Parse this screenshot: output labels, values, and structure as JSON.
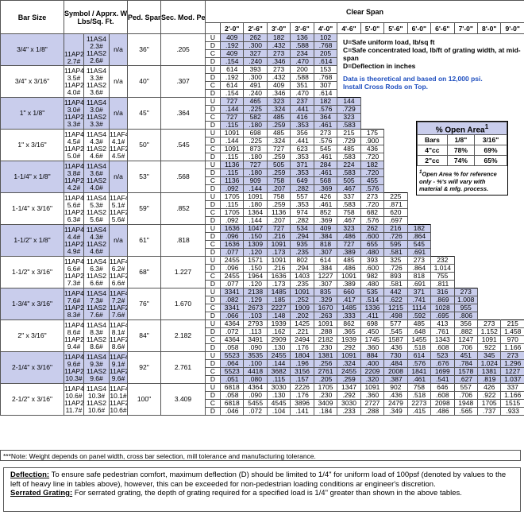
{
  "header": {
    "bar_size": "Bar Size",
    "symbol": "Symbol / Apprx. Wgt***",
    "symbol_unit": "Lbs/Sq. Ft.",
    "ped_span": "Ped. Span",
    "sec_mod": "Sec. Mod. Per Ft. Of Width",
    "clear_span": "Clear Span",
    "spans": [
      "2'-0\"",
      "2'-6\"",
      "3'-0\"",
      "3'-6\"",
      "4'-0\"",
      "4'-6\"",
      "5'-0\"",
      "5'-6\"",
      "6'-0\"",
      "6'-6\"",
      "7'-0\"",
      "8'-0\"",
      "9'-0\""
    ]
  },
  "load_codes": [
    "U",
    "D",
    "C",
    "D"
  ],
  "rows": [
    {
      "bar_size": "3/4\" x 1/8\"",
      "symbols": [
        [
          "11AP2",
          "2.7#"
        ],
        [
          "11AS4",
          "2.3#",
          "11AS2",
          "2.6#"
        ],
        [
          "n/a"
        ]
      ],
      "ped_span": "36\"",
      "sec_mod": ".205",
      "values": [
        [
          "409",
          "262",
          "182",
          "136",
          "102"
        ],
        [
          ".192",
          ".300",
          ".432",
          ".588",
          ".768"
        ],
        [
          "409",
          "327",
          "273",
          "234",
          "205"
        ],
        [
          ".154",
          ".240",
          ".346",
          ".470",
          ".614"
        ]
      ]
    },
    {
      "bar_size": "3/4\" x 3/16\"",
      "symbols": [
        [
          "11AP4",
          "3.5#",
          "11AP2",
          "4.0#"
        ],
        [
          "11AS4",
          "3.3#",
          "11AS2",
          "3.6#"
        ],
        [
          "n/a"
        ]
      ],
      "ped_span": "40\"",
      "sec_mod": ".307",
      "values": [
        [
          "614",
          "393",
          "273",
          "200",
          "153"
        ],
        [
          ".192",
          ".300",
          ".432",
          ".588",
          ".768"
        ],
        [
          "614",
          "491",
          "409",
          "351",
          "307"
        ],
        [
          ".154",
          ".240",
          ".346",
          ".470",
          ".614"
        ]
      ]
    },
    {
      "bar_size": "1\" x 1/8\"",
      "symbols": [
        [
          "11AP4",
          "3.0#",
          "11AP2",
          "3.3#"
        ],
        [
          "11AS4",
          "3.0#",
          "11AS2",
          "3.3#"
        ],
        [
          "n/a"
        ]
      ],
      "ped_span": "45\"",
      "sec_mod": ".364",
      "values": [
        [
          "727",
          "465",
          "323",
          "237",
          "182",
          "144"
        ],
        [
          ".144",
          ".225",
          ".324",
          ".441",
          ".576",
          ".729"
        ],
        [
          "727",
          "582",
          "485",
          "416",
          "364",
          "323"
        ],
        [
          ".115",
          ".180",
          ".259",
          ".353",
          ".461",
          ".583"
        ]
      ]
    },
    {
      "bar_size": "1\" x 3/16\"",
      "symbols": [
        [
          "11AP4",
          "4.5#",
          "11AP2",
          "5.0#"
        ],
        [
          "11AS4",
          "4.3#",
          "11AS2",
          "4.6#"
        ],
        [
          "11AF4",
          "4.1#",
          "11AF2",
          "4.5#"
        ]
      ],
      "ped_span": "50\"",
      "sec_mod": ".545",
      "values": [
        [
          "1091",
          "698",
          "485",
          "356",
          "273",
          "215",
          "175"
        ],
        [
          ".144",
          ".225",
          ".324",
          ".441",
          ".576",
          ".729",
          ".900"
        ],
        [
          "1091",
          "873",
          "727",
          "623",
          "545",
          "485",
          "436"
        ],
        [
          ".115",
          ".180",
          ".259",
          ".353",
          ".461",
          ".583",
          ".720"
        ]
      ]
    },
    {
      "bar_size": "1-1/4\" x 1/8\"",
      "symbols": [
        [
          "11AP4",
          "3.8#",
          "11AP2",
          "4.2#"
        ],
        [
          "11AS4",
          "3.6#",
          "11AS2",
          "4.0#"
        ],
        [
          "n/a"
        ]
      ],
      "ped_span": "53\"",
      "sec_mod": ".568",
      "values": [
        [
          "1136",
          "727",
          "505",
          "371",
          "284",
          "224",
          "182"
        ],
        [
          ".115",
          ".180",
          ".259",
          ".353",
          ".461",
          ".583",
          ".720"
        ],
        [
          "1136",
          "909",
          "758",
          "649",
          "568",
          "505",
          "455"
        ],
        [
          ".092",
          ".144",
          ".207",
          ".282",
          ".369",
          ".467",
          ".576"
        ]
      ]
    },
    {
      "bar_size": "1-1/4\" x 3/16\"",
      "symbols": [
        [
          "11AP4",
          "5.6#",
          "11AP2",
          "6.3#"
        ],
        [
          "11AS4",
          "5.3#",
          "11AS2",
          "5.6#"
        ],
        [
          "11AF4",
          "5.1#",
          "11AF2",
          "5.6#"
        ]
      ],
      "ped_span": "59\"",
      "sec_mod": ".852",
      "values": [
        [
          "1705",
          "1091",
          "758",
          "557",
          "426",
          "337",
          "273",
          "225"
        ],
        [
          ".115",
          ".180",
          ".259",
          ".353",
          ".461",
          ".583",
          ".720",
          ".871"
        ],
        [
          "1705",
          "1364",
          "1136",
          "974",
          "852",
          "758",
          "682",
          "620"
        ],
        [
          ".092",
          ".144",
          ".207",
          ".282",
          ".369",
          ".467",
          ".576",
          ".697"
        ]
      ]
    },
    {
      "bar_size": "1-1/2\" x 1/8\"",
      "symbols": [
        [
          "11AP4",
          "4.4#",
          "11AP2",
          "4.9#"
        ],
        [
          "11AS4",
          "4.3#",
          "11AS2",
          "4.6#"
        ],
        [
          "n/a"
        ]
      ],
      "ped_span": "61\"",
      "sec_mod": ".818",
      "values": [
        [
          "1636",
          "1047",
          "727",
          "534",
          "409",
          "323",
          "262",
          "216",
          "182"
        ],
        [
          ".096",
          ".150",
          ".216",
          ".294",
          ".384",
          ".486",
          ".600",
          ".726",
          ".864"
        ],
        [
          "1636",
          "1309",
          "1091",
          "935",
          "818",
          "727",
          "655",
          "595",
          "545"
        ],
        [
          ".077",
          ".120",
          ".173",
          ".235",
          ".307",
          ".389",
          ".480",
          ".581",
          ".691"
        ]
      ]
    },
    {
      "bar_size": "1-1/2\" x 3/16\"",
      "symbols": [
        [
          "11AP4",
          "6.6#",
          "11AP2",
          "7.3#"
        ],
        [
          "11AS4",
          "6.3#",
          "11AS2",
          "6.6#"
        ],
        [
          "11AF4",
          "6.2#",
          "11AF2",
          "6.6#"
        ]
      ],
      "ped_span": "68\"",
      "sec_mod": "1.227",
      "values": [
        [
          "2455",
          "1571",
          "1091",
          "802",
          "614",
          "485",
          "393",
          "325",
          "273",
          "232"
        ],
        [
          ".096",
          ".150",
          ".216",
          ".294",
          ".384",
          ".486",
          ".600",
          ".726",
          ".864",
          "1.014"
        ],
        [
          "2455",
          "1964",
          "1636",
          "1403",
          "1227",
          "1091",
          "982",
          "893",
          "818",
          "755"
        ],
        [
          ".077",
          ".120",
          ".173",
          ".235",
          ".307",
          ".389",
          ".480",
          ".581",
          ".691",
          ".811"
        ]
      ]
    },
    {
      "bar_size": "1-3/4\" x 3/16\"",
      "symbols": [
        [
          "11AP4",
          "7.6#",
          "11AP2",
          "8.3#"
        ],
        [
          "11AS4",
          "7.3#",
          "11AS2",
          "7.6#"
        ],
        [
          "11AF4",
          "7.2#",
          "11AF2",
          "7.6#"
        ]
      ],
      "ped_span": "76\"",
      "sec_mod": "1.670",
      "values": [
        [
          "3341",
          "2138",
          "1485",
          "1091",
          "835",
          "660",
          "535",
          "442",
          "371",
          "316",
          "273"
        ],
        [
          ".082",
          ".129",
          ".185",
          ".252",
          ".329",
          ".417",
          ".514",
          ".622",
          ".741",
          ".869",
          "1.008"
        ],
        [
          "3341",
          "2673",
          "2227",
          "1909",
          "1670",
          "1485",
          "1336",
          "1215",
          "1114",
          "1028",
          "955"
        ],
        [
          ".066",
          ".103",
          ".148",
          ".202",
          ".263",
          ".333",
          ".411",
          ".498",
          ".592",
          ".695",
          ".806"
        ]
      ]
    },
    {
      "bar_size": "2\" x 3/16\"",
      "symbols": [
        [
          "11AP4",
          "8.6#",
          "11AP2",
          "9.4#"
        ],
        [
          "11AS4",
          "8.3#",
          "11AS2",
          "8.6#"
        ],
        [
          "11AF4",
          "8.1#",
          "11AF2",
          "8.6#"
        ]
      ],
      "ped_span": "84\"",
      "sec_mod": "2.182",
      "values": [
        [
          "4364",
          "2793",
          "1939",
          "1425",
          "1091",
          "862",
          "698",
          "577",
          "485",
          "413",
          "356",
          "273",
          "215"
        ],
        [
          ".072",
          ".113",
          ".162",
          ".221",
          ".288",
          ".365",
          ".450",
          ".545",
          ".648",
          ".761",
          ".882",
          "1.152",
          "1.458"
        ],
        [
          "4364",
          "3491",
          "2909",
          "2494",
          "2182",
          "1939",
          "1745",
          "1587",
          "1455",
          "1343",
          "1247",
          "1091",
          "970"
        ],
        [
          ".058",
          ".090",
          ".130",
          ".176",
          ".230",
          ".292",
          ".360",
          ".436",
          ".518",
          ".608",
          ".706",
          ".922",
          "1.166"
        ]
      ]
    },
    {
      "bar_size": "2-1/4\" x 3/16\"",
      "symbols": [
        [
          "11AP4",
          "9.6#",
          "11AP2",
          "10.3#"
        ],
        [
          "11AS4",
          "9.3#",
          "11AS2",
          "9.6#"
        ],
        [
          "11AF4",
          "9.1#",
          "11AF2",
          "9.6#"
        ]
      ],
      "ped_span": "92\"",
      "sec_mod": "2.761",
      "values": [
        [
          "5523",
          "3535",
          "2455",
          "1804",
          "1381",
          "1091",
          "884",
          "730",
          "614",
          "523",
          "451",
          "345",
          "273"
        ],
        [
          ".064",
          ".100",
          ".144",
          ".196",
          ".256",
          ".324",
          ".400",
          ".484",
          ".576",
          ".676",
          ".784",
          "1.024",
          "1.296"
        ],
        [
          "5523",
          "4418",
          "3682",
          "3156",
          "2761",
          "2455",
          "2209",
          "2008",
          "1841",
          "1699",
          "1578",
          "1381",
          "1227"
        ],
        [
          ".051",
          ".080",
          ".115",
          ".157",
          ".205",
          ".259",
          ".320",
          ".387",
          ".461",
          ".541",
          ".627",
          ".819",
          "1.037"
        ]
      ]
    },
    {
      "bar_size": "2-1/2\" x 3/16\"",
      "symbols": [
        [
          "11AP4",
          "10.6#",
          "11AP2",
          "11.7#"
        ],
        [
          "11AS4",
          "10.3#",
          "11AS2",
          "10.6#"
        ],
        [
          "11AF4",
          "10.1#",
          "11AF2",
          "10.6#"
        ]
      ],
      "ped_span": "100\"",
      "sec_mod": "3.409",
      "values": [
        [
          "6818",
          "4364",
          "3030",
          "2226",
          "1705",
          "1347",
          "1091",
          "902",
          "758",
          "646",
          "557",
          "426",
          "337"
        ],
        [
          ".058",
          ".090",
          ".130",
          ".176",
          ".230",
          ".292",
          ".360",
          ".436",
          ".518",
          ".608",
          ".706",
          ".922",
          "1.166"
        ],
        [
          "6818",
          "5455",
          "4545",
          "3896",
          "3409",
          "3030",
          "2727",
          "2479",
          "2273",
          "2098",
          "1948",
          "1705",
          "1515"
        ],
        [
          ".046",
          ".072",
          ".104",
          ".141",
          ".184",
          ".233",
          ".288",
          ".349",
          ".415",
          ".486",
          ".565",
          ".737",
          ".933"
        ]
      ]
    }
  ],
  "legend": {
    "lines": [
      "U=Safe uniform load, lb/sq ft",
      "C=Safe concentrated load, lb/ft of grating width, at mid-span",
      "D=Deflection in inches"
    ],
    "notice": [
      "Data is theoretical and based on 12,000 psi.",
      "Install Cross Rods on Top."
    ]
  },
  "open_area": {
    "title": "% Open Area",
    "title_mark": "1",
    "headers": [
      "Bars",
      "1/8\"",
      "3/16\""
    ],
    "rows": [
      [
        "4\"cc",
        "78%",
        "69%"
      ],
      [
        "2\"cc",
        "74%",
        "65%"
      ]
    ],
    "footnote_mark": "1",
    "footnote": "Open Area % for reference only - %'s will vary with material & mfg. process."
  },
  "note": "***Note: Weight depends on panel width, cross bar selection, mill tolerance and manufacturing tolerance.",
  "deflection": {
    "label": "Deflection:",
    "text": "To ensure safe pedestrian comfort, maximum deflection (D) should be limited to 1/4\" for uniform load of 100psf (denoted by values to the left of heavy line in tables above), however, this can be exceeded for non-pedestrian loading conditions ar engineer's discretion."
  },
  "serrated": {
    "label": "Serrated Grating:",
    "text": "For serrated grating, the depth of grating required for a specified load is 1/4\" greater than shown in the above tables."
  }
}
